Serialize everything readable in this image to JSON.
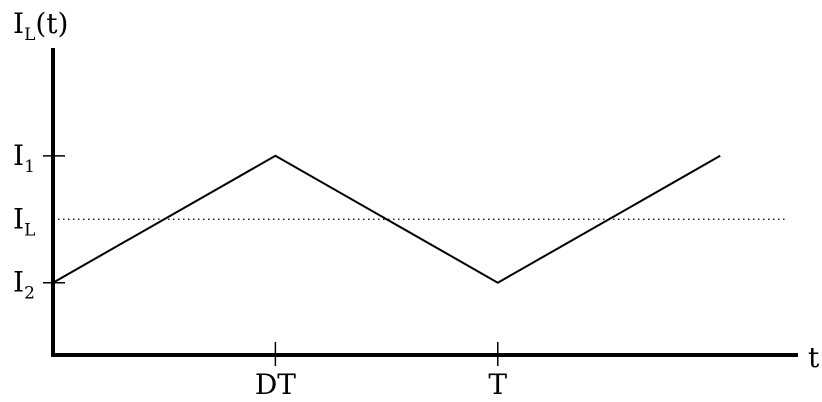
{
  "chart_data": {
    "type": "line",
    "title": "",
    "ylabel": {
      "main": "I",
      "sub": "L",
      "suffix": "(t)"
    },
    "xlabel": "t",
    "x_ticks": [
      {
        "label": "DT",
        "value": 1
      },
      {
        "label": "T",
        "value": 2
      }
    ],
    "y_ticks": [
      {
        "main": "I",
        "sub": "1",
        "value": 1
      },
      {
        "main": "I",
        "sub": "L",
        "value": 0.5,
        "dotted_reference": true
      },
      {
        "main": "I",
        "sub": "2",
        "value": 0
      }
    ],
    "xlim": [
      0,
      3.35
    ],
    "ylim": [
      -0.57,
      1.85
    ],
    "series": [
      {
        "x": [
          0,
          1,
          2,
          3
        ],
        "y": [
          0,
          1,
          0,
          1
        ]
      }
    ],
    "reference_lines": [
      {
        "orientation": "horizontal",
        "value": 0.5,
        "style": "dotted"
      }
    ],
    "grid": false,
    "colors": {
      "line": "#000000",
      "axes": "#000000",
      "reference": "#000000"
    }
  }
}
